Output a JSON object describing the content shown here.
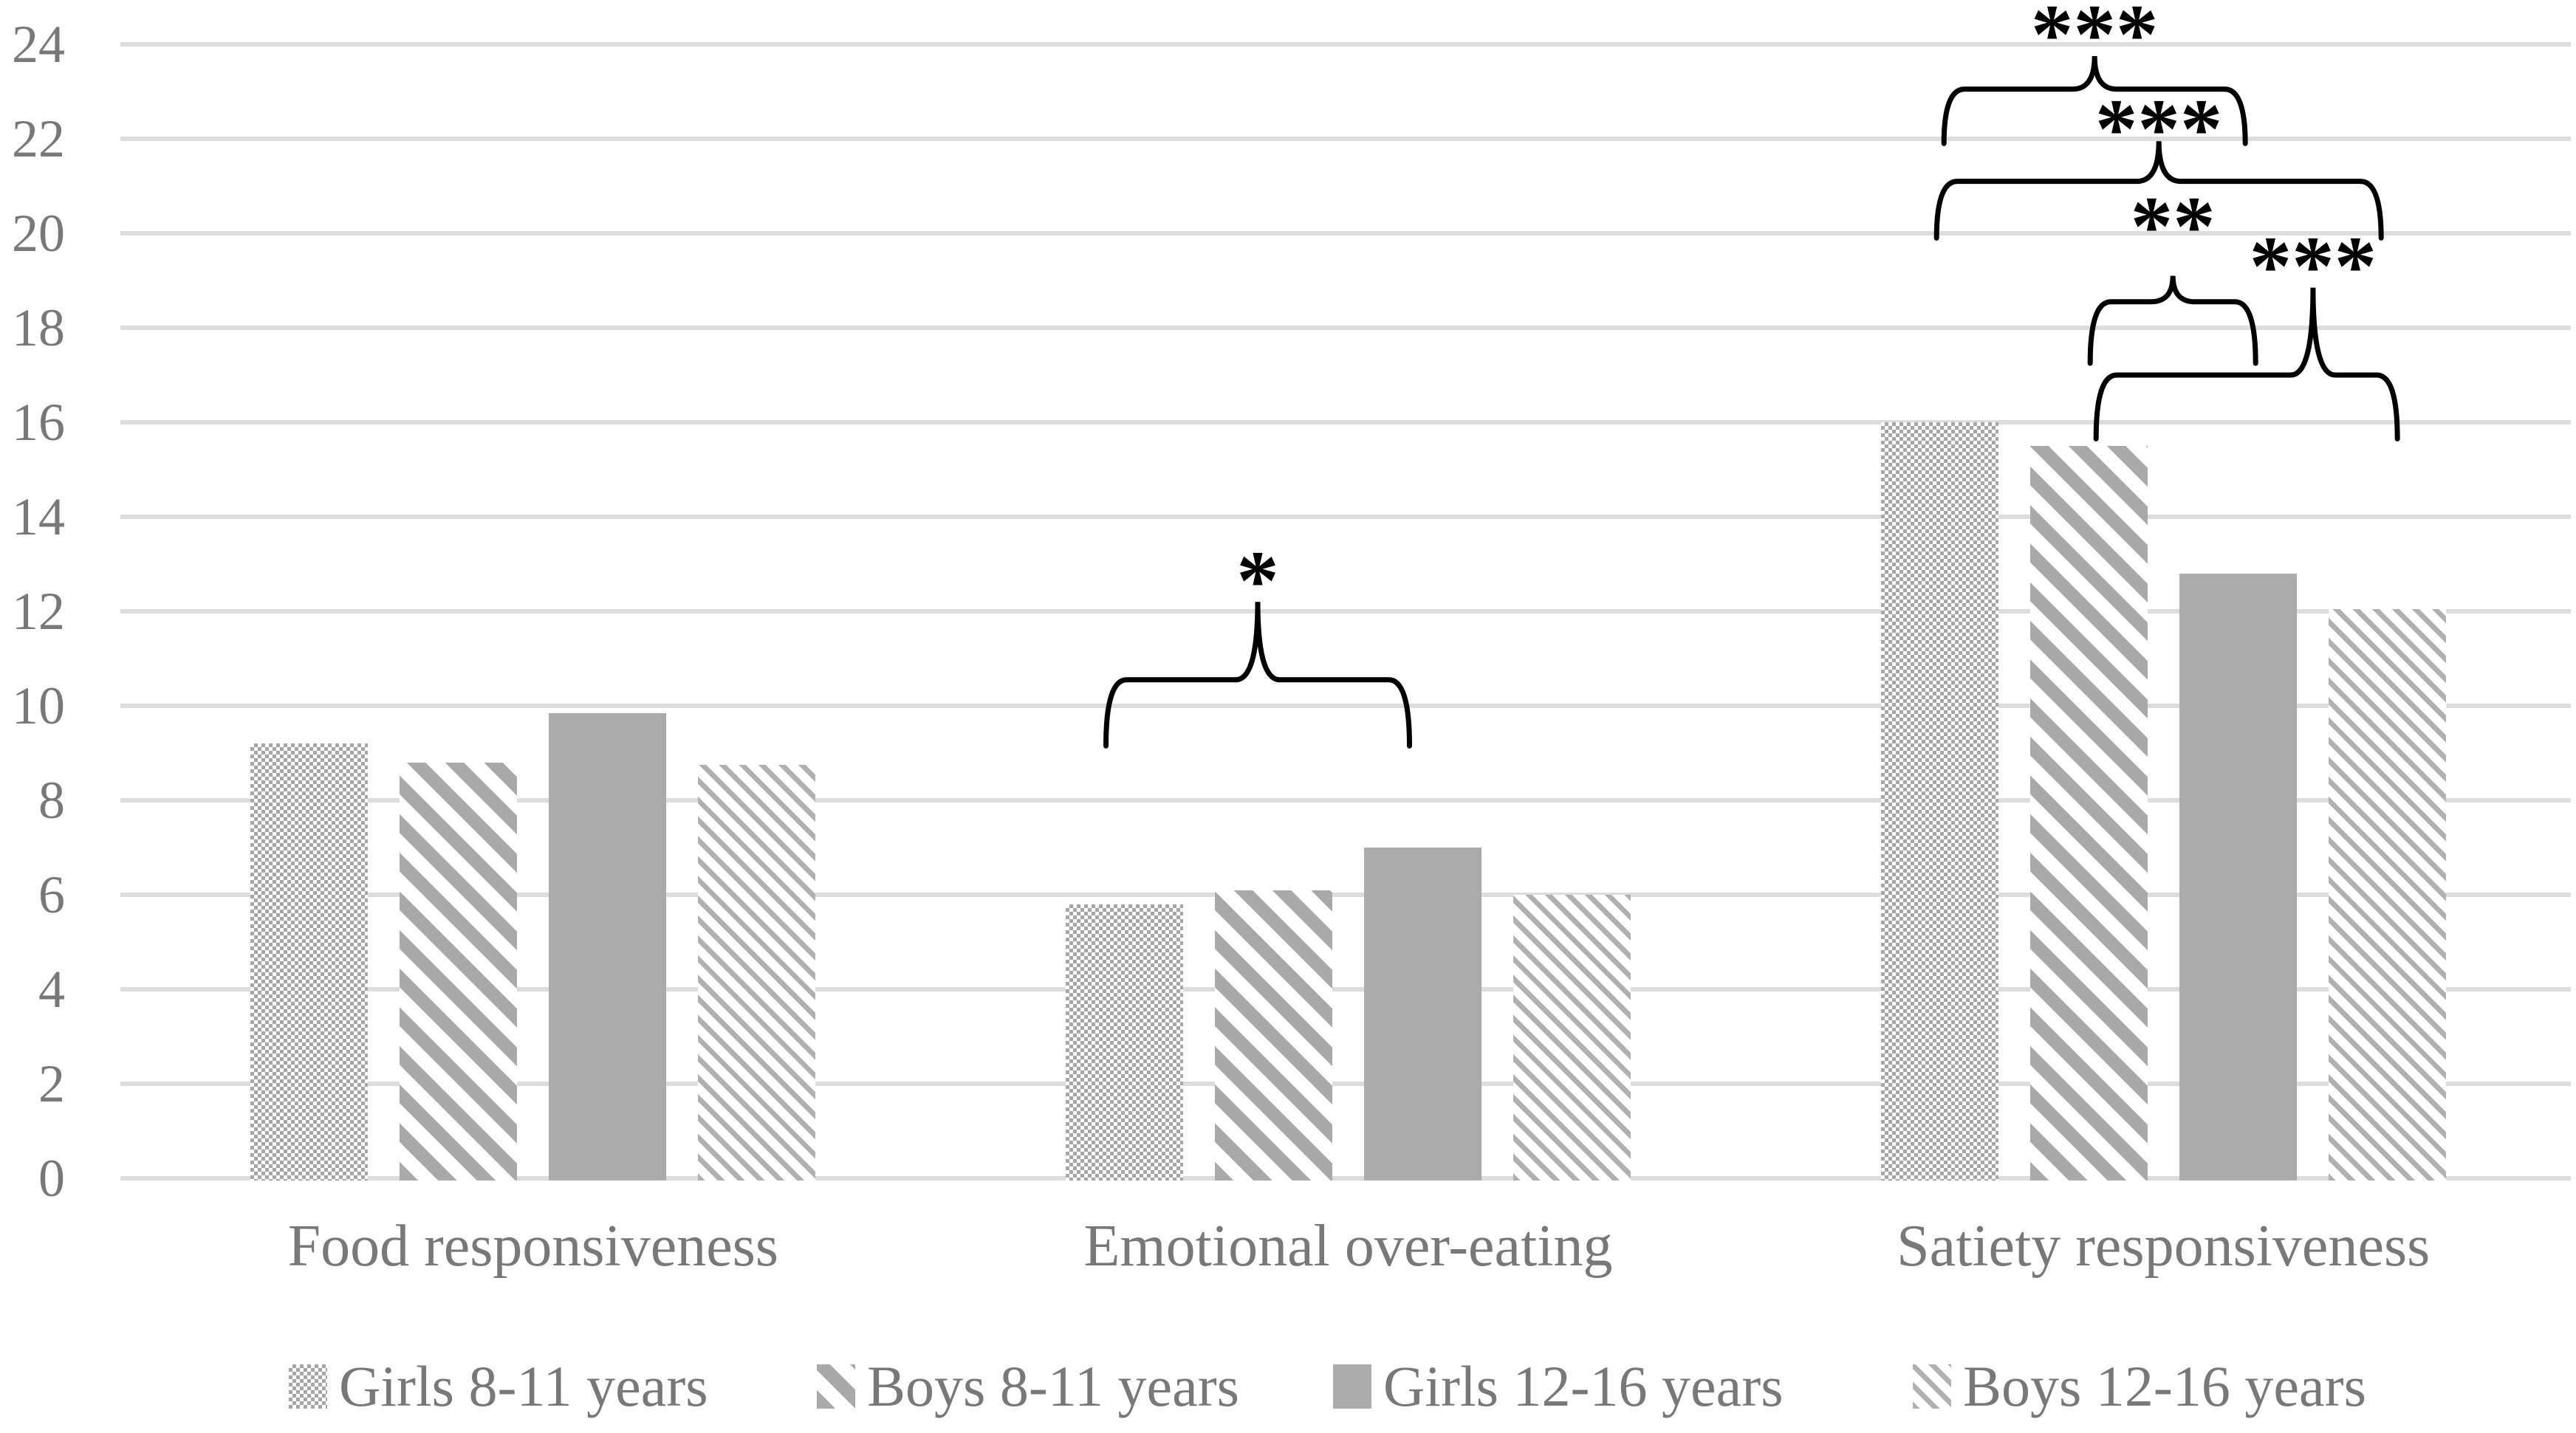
{
  "chart_data": {
    "type": "bar",
    "title": "",
    "categories": [
      "Food responsiveness",
      "Emotional over-eating",
      "Satiety responsiveness"
    ],
    "series": [
      {
        "name": "Girls 8-11 years",
        "pattern": "dotted-grid",
        "values": [
          9.2,
          5.8,
          16.0
        ]
      },
      {
        "name": "Boys 8-11 years",
        "pattern": "wide-downward-diagonal",
        "values": [
          8.8,
          6.1,
          15.5
        ]
      },
      {
        "name": "Girls 12-16 years",
        "pattern": "solid",
        "values": [
          9.85,
          7.0,
          12.8
        ]
      },
      {
        "name": "Boys 12-16 years",
        "pattern": "light-downward-diagonal",
        "values": [
          8.75,
          6.0,
          12.05
        ]
      }
    ],
    "y_axis": {
      "min": 0,
      "max": 24,
      "step": 2,
      "tick_labels": [
        "0",
        "2",
        "4",
        "6",
        "8",
        "10",
        "12",
        "14",
        "16",
        "18",
        "20",
        "22",
        "24"
      ]
    },
    "grid": true,
    "legend_position": "bottom",
    "significance_brackets": [
      {
        "category": "Emotional over-eating",
        "from": "Girls 8-11 years",
        "to": "Girls 12-16 years",
        "stars": "*",
        "line_v": 10.55,
        "tip_v": 9.15,
        "peak_v": 12.2,
        "star_v": 12.85,
        "peak_frac": 0.5
      },
      {
        "category": "Satiety responsiveness",
        "from": "Girls 8-11 years",
        "to": "Girls 12-16 years",
        "stars": "***",
        "line_v": 23.05,
        "tip_v": 21.9,
        "peak_v": 23.75,
        "star_v": 24.4,
        "peak_frac": 0.5
      },
      {
        "category": "Satiety responsiveness",
        "from": "Girls 8-11 years",
        "to": "Boys 12-16 years",
        "stars": "***",
        "line_v": 21.1,
        "tip_v": 19.9,
        "peak_v": 21.95,
        "star_v": 22.4,
        "peak_frac": 0.5
      },
      {
        "category": "Satiety responsiveness",
        "from": "Boys 8-11 years",
        "to": "Girls 12-16 years",
        "stars": "**",
        "line_v": 18.55,
        "tip_v": 17.25,
        "peak_v": 19.1,
        "star_v": 20.35,
        "peak_frac": 0.5
      },
      {
        "category": "Satiety responsiveness",
        "from": "Boys 8-11 years",
        "to": "Boys 12-16 years",
        "stars": "***",
        "line_v": 17.0,
        "tip_v": 15.65,
        "peak_v": 18.85,
        "star_v": 19.5,
        "peak_frac": 0.72
      }
    ]
  },
  "colors": {
    "bar_solid": "#ababab",
    "pattern_gray": "#a6a6a6",
    "gridline": "#dcdcdc",
    "text_gray": "#787878",
    "bracket_black": "#000000",
    "background": "#ffffff"
  }
}
